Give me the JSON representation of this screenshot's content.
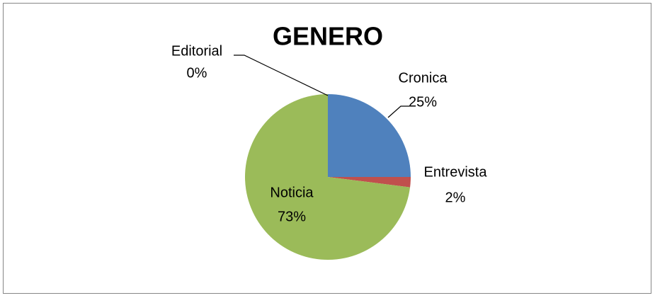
{
  "chart_data": {
    "type": "pie",
    "title": "GENERO",
    "categories": [
      "Cronica",
      "Entrevista",
      "Noticia",
      "Editorial"
    ],
    "values": [
      25,
      2,
      73,
      0
    ],
    "value_labels": [
      "25%",
      "2%",
      "73%",
      "0%"
    ],
    "colors": [
      "#4f81bd",
      "#c0504d",
      "#9bbb59",
      "#8064a2"
    ]
  }
}
